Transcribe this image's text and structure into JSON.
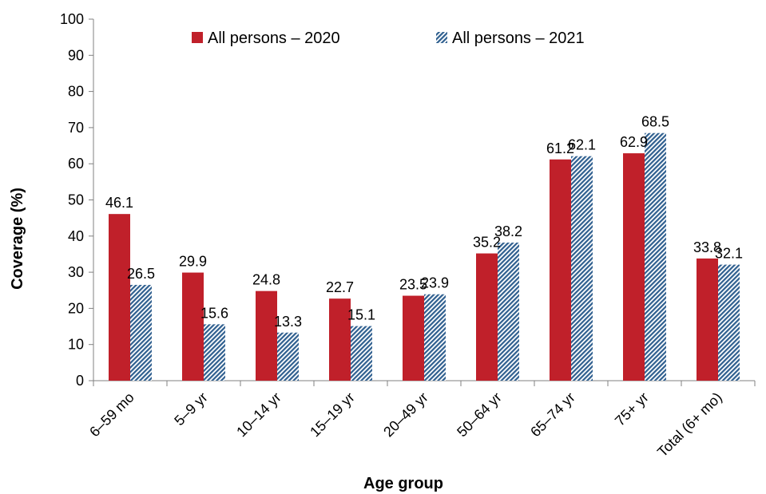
{
  "chart_data": {
    "type": "bar",
    "title": "",
    "xlabel": "Age group",
    "ylabel": "Coverage (%)",
    "ylim": [
      0,
      100
    ],
    "yticks": [
      0,
      10,
      20,
      30,
      40,
      50,
      60,
      70,
      80,
      90,
      100
    ],
    "grid": false,
    "legend_position": "top",
    "categories": [
      "6–59 mo",
      "5–9 yr",
      "10–14 yr",
      "15–19 yr",
      "20–49 yr",
      "50–64 yr",
      "65–74 yr",
      "75+ yr",
      "Total (6+ mo)"
    ],
    "series": [
      {
        "name": "All persons – 2020",
        "color": "#c0202a",
        "pattern": "solid",
        "values": [
          46.1,
          29.9,
          24.8,
          22.7,
          23.5,
          35.2,
          61.2,
          62.9,
          33.8
        ]
      },
      {
        "name": "All persons – 2021",
        "color": "#2f5f8f",
        "pattern": "diagonal-hatch",
        "values": [
          26.5,
          15.6,
          13.3,
          15.1,
          23.9,
          38.2,
          62.1,
          68.5,
          32.1
        ]
      }
    ]
  }
}
